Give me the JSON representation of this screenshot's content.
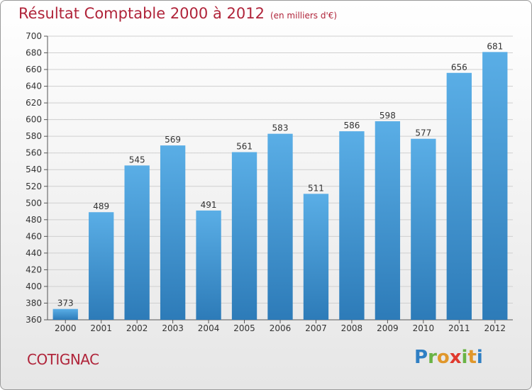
{
  "chart_data": {
    "type": "bar",
    "title": "Résultat Comptable 2000 à 2012",
    "subtitle": "(en milliers d'€)",
    "categories": [
      "2000",
      "2001",
      "2002",
      "2003",
      "2004",
      "2005",
      "2006",
      "2007",
      "2008",
      "2009",
      "2010",
      "2011",
      "2012"
    ],
    "values": [
      373,
      489,
      545,
      569,
      491,
      561,
      583,
      511,
      586,
      598,
      577,
      656,
      681
    ],
    "ylim": [
      360,
      700
    ],
    "ytick_step": 20,
    "grid": true,
    "xlabel": "",
    "ylabel": ""
  },
  "footer": {
    "town": "COTIGNAC",
    "logo_letters": [
      "P",
      "r",
      "o",
      "x",
      "i",
      "t",
      "i"
    ]
  },
  "colors": {
    "title": "#b0243a",
    "bar_light": "#5aaee6",
    "bar_dark": "#2d7bb8",
    "logo": [
      "#2f7fc4",
      "#6ab345",
      "#e0972b",
      "#e03a2f",
      "#6ab345",
      "#e0972b",
      "#2f7fc4"
    ]
  }
}
